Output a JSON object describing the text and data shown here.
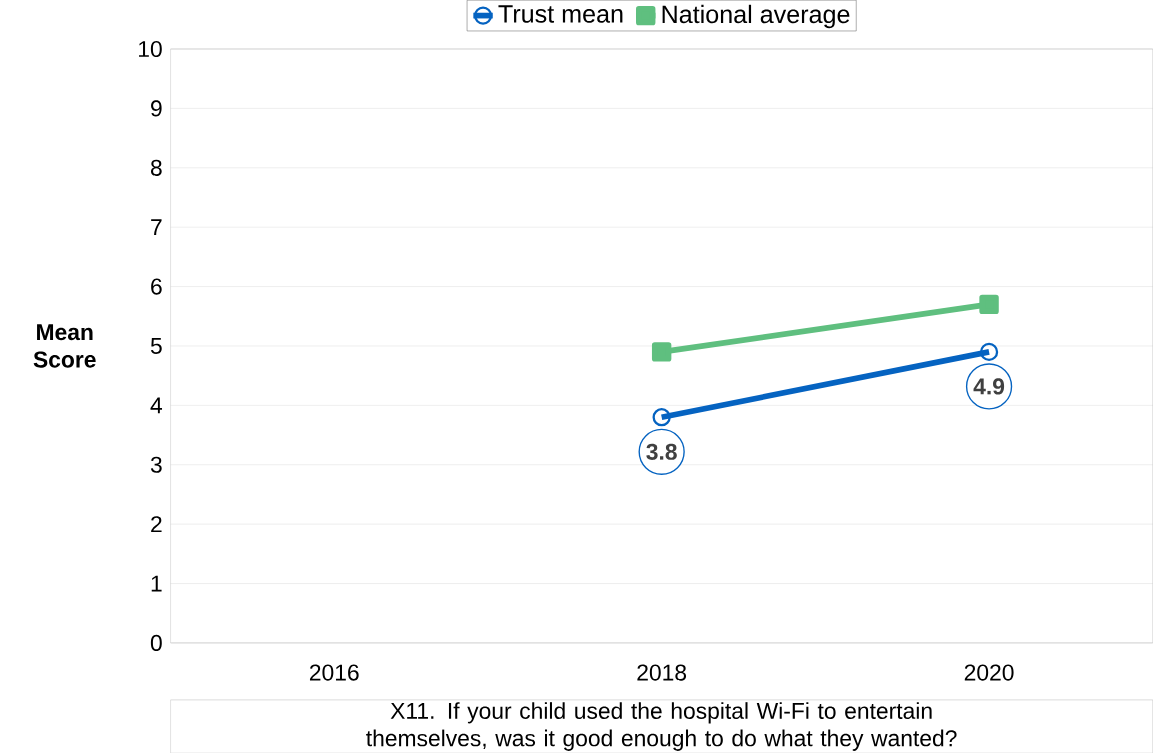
{
  "chart_data": {
    "type": "line",
    "categories": [
      "2016",
      "2018",
      "2020"
    ],
    "ylabel": "Mean Score",
    "xlabel": "X11. If your child used the hospital Wi-Fi to entertain themselves, was it good enough to do what they wanted?",
    "ylim": [
      0,
      10
    ],
    "yticks": [
      0,
      1,
      2,
      3,
      4,
      5,
      6,
      7,
      8,
      9,
      10
    ],
    "grid": "y",
    "legend": "top",
    "line_style": "solid",
    "series": [
      {
        "name": "Trust mean",
        "color": "#0563c1",
        "marker": "circle",
        "values": [
          null,
          3.8,
          4.9
        ],
        "value_labels": [
          null,
          "3.8",
          "4.9"
        ]
      },
      {
        "name": "National average",
        "color": "#5fbf7f",
        "marker": "square",
        "values": [
          null,
          4.9,
          5.7
        ]
      }
    ]
  }
}
